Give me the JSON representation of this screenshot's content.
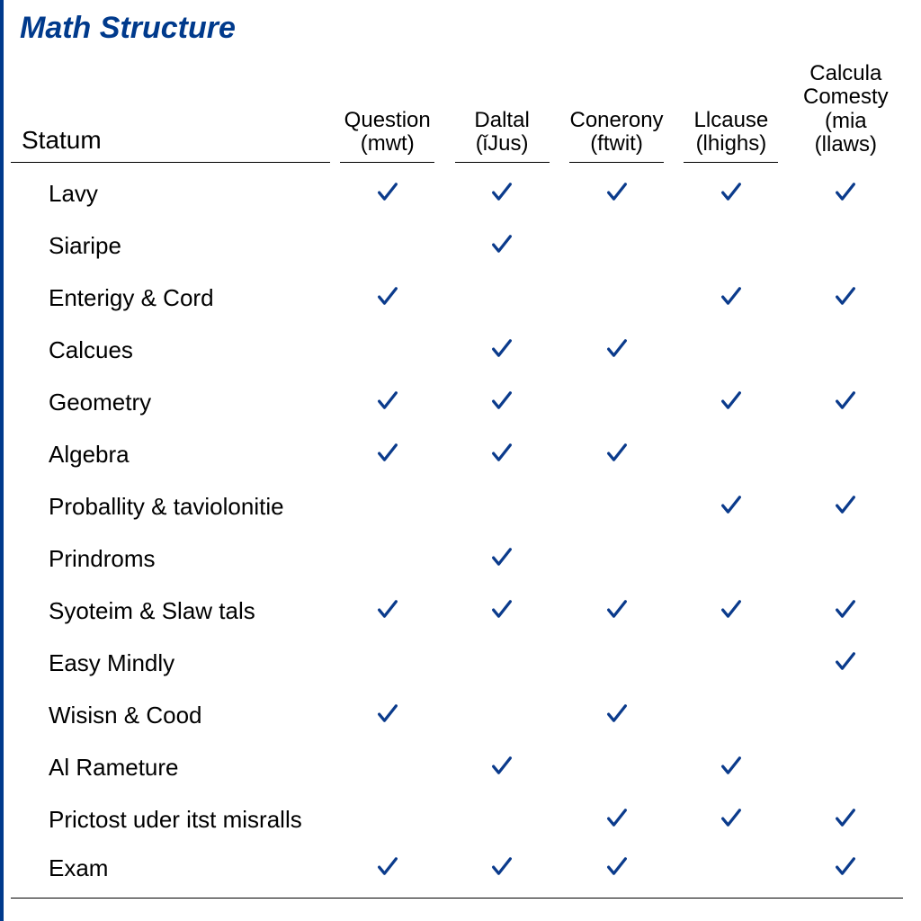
{
  "title": "Math Structure",
  "title_color": "#003a8c",
  "check_color": "#0b3b8c",
  "background_color": "#ffffff",
  "border_color": "#000000",
  "text_color": "#000000",
  "row_label_header": "Statum",
  "columns": [
    {
      "line1": "Question",
      "line2": "(mwt)",
      "line3": ""
    },
    {
      "line1": "Daltal",
      "line2": "(ǐJus)",
      "line3": ""
    },
    {
      "line1": "Conerony",
      "line2": "(ftwit)",
      "line3": ""
    },
    {
      "line1": "Llcause",
      "line2": "(lhighs)",
      "line3": ""
    },
    {
      "line1": "Calcula",
      "line2": "Comesty",
      "line3": "(mia",
      "line4": "(llaws)"
    }
  ],
  "rows": [
    {
      "label": "Lavy",
      "checks": [
        true,
        true,
        true,
        true,
        true
      ]
    },
    {
      "label": "Siaripe",
      "checks": [
        false,
        true,
        false,
        false,
        false
      ]
    },
    {
      "label": "Enterigy & Cord",
      "checks": [
        true,
        false,
        false,
        true,
        true
      ]
    },
    {
      "label": "Calcues",
      "checks": [
        false,
        true,
        true,
        false,
        false
      ]
    },
    {
      "label": "Geometry",
      "checks": [
        true,
        true,
        false,
        true,
        true
      ]
    },
    {
      "label": "Algebra",
      "checks": [
        true,
        true,
        true,
        false,
        false
      ]
    },
    {
      "label": "Proballity & taviolonitie",
      "checks": [
        false,
        false,
        false,
        true,
        true
      ]
    },
    {
      "label": "Prindroms",
      "checks": [
        false,
        true,
        false,
        false,
        false
      ]
    },
    {
      "label": "Syoteim & Slaw tals",
      "checks": [
        true,
        true,
        true,
        true,
        true
      ]
    },
    {
      "label": "Easy Mindly",
      "checks": [
        false,
        false,
        false,
        false,
        true
      ]
    },
    {
      "label": "Wisisn & Cood",
      "checks": [
        true,
        false,
        true,
        false,
        false
      ]
    },
    {
      "label": "Al Rameture",
      "checks": [
        false,
        true,
        false,
        true,
        false
      ]
    },
    {
      "label": "Prictost uder itst misralls",
      "checks": [
        false,
        false,
        true,
        true,
        true
      ]
    },
    {
      "label": "Exam",
      "checks": [
        true,
        true,
        true,
        false,
        true
      ]
    }
  ]
}
